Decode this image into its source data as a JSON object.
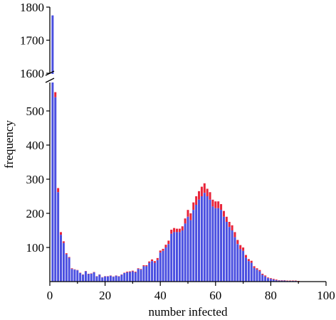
{
  "chart_data": {
    "type": "bar",
    "xlabel": "number infected",
    "ylabel": "frequency",
    "xlim": [
      0,
      100
    ],
    "x_ticks": [
      0,
      20,
      40,
      60,
      80,
      100
    ],
    "y_ticks_lower": [
      100,
      200,
      300,
      400,
      500
    ],
    "y_ticks_upper": [
      1600,
      1700,
      1800
    ],
    "y_break": {
      "lower_range": [
        0,
        600
      ],
      "upper_range": [
        1590,
        1800
      ]
    },
    "x": [
      1,
      2,
      3,
      4,
      5,
      6,
      7,
      8,
      9,
      10,
      11,
      12,
      13,
      14,
      15,
      16,
      17,
      18,
      19,
      20,
      21,
      22,
      23,
      24,
      25,
      26,
      27,
      28,
      29,
      30,
      31,
      32,
      33,
      34,
      35,
      36,
      37,
      38,
      39,
      40,
      41,
      42,
      43,
      44,
      45,
      46,
      47,
      48,
      49,
      50,
      51,
      52,
      53,
      54,
      55,
      56,
      57,
      58,
      59,
      60,
      61,
      62,
      63,
      64,
      65,
      66,
      67,
      68,
      69,
      70,
      71,
      72,
      73,
      74,
      75,
      76,
      77,
      78,
      79,
      80,
      81,
      82,
      83,
      84,
      85,
      86,
      87,
      88,
      89,
      90
    ],
    "series": [
      {
        "color": "#4a4fe0",
        "values": [
          1775,
          540,
          262,
          137,
          113,
          80,
          70,
          37,
          35,
          33,
          25,
          20,
          30,
          22,
          23,
          27,
          15,
          20,
          12,
          15,
          15,
          17,
          14,
          17,
          15,
          20,
          25,
          27,
          28,
          30,
          27,
          37,
          35,
          45,
          45,
          55,
          60,
          55,
          63,
          85,
          90,
          100,
          110,
          140,
          145,
          145,
          145,
          150,
          170,
          190,
          180,
          210,
          225,
          240,
          250,
          260,
          250,
          240,
          220,
          215,
          215,
          210,
          190,
          175,
          160,
          150,
          130,
          110,
          95,
          90,
          70,
          60,
          55,
          40,
          35,
          30,
          20,
          15,
          10,
          8,
          6,
          4,
          3,
          3,
          3,
          2,
          2,
          2,
          2,
          1
        ]
      },
      {
        "color": "#e8243a",
        "values": [
          0,
          15,
          12,
          8,
          5,
          3,
          2,
          2,
          1,
          1,
          1,
          1,
          1,
          1,
          1,
          1,
          1,
          1,
          1,
          1,
          1,
          1,
          1,
          1,
          1,
          1,
          1,
          2,
          2,
          2,
          2,
          2,
          2,
          3,
          3,
          4,
          5,
          5,
          6,
          6,
          6,
          8,
          10,
          12,
          12,
          10,
          10,
          12,
          15,
          20,
          20,
          22,
          25,
          25,
          28,
          28,
          22,
          22,
          20,
          20,
          20,
          17,
          17,
          15,
          15,
          15,
          15,
          12,
          12,
          10,
          8,
          6,
          6,
          5,
          4,
          4,
          3,
          3,
          2,
          2,
          2,
          2,
          1,
          1,
          1,
          1,
          1,
          1,
          1,
          1
        ]
      }
    ]
  }
}
